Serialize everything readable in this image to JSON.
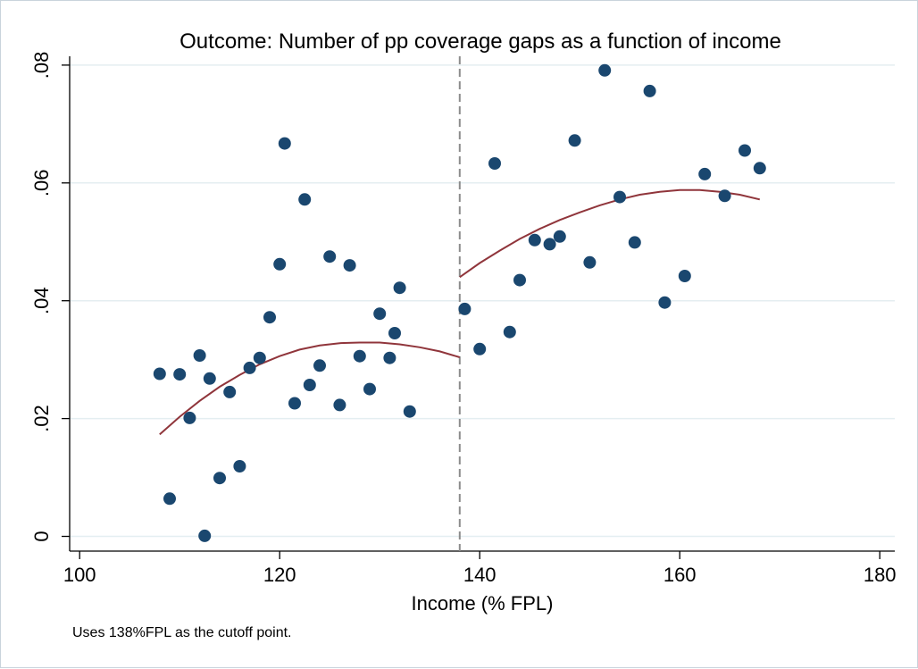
{
  "chart_data": {
    "type": "scatter",
    "title": "Outcome: Number of pp coverage gaps as a function of income",
    "xlabel": "Income (% FPL)",
    "ylabel": "",
    "note": "Uses 138%FPL as the cutoff point.",
    "xlim": [
      99,
      181.5
    ],
    "ylim": [
      -0.0025,
      0.0815
    ],
    "x_ticks": [
      100,
      120,
      140,
      160,
      180
    ],
    "x_tick_labels": [
      "100",
      "120",
      "140",
      "160",
      "180"
    ],
    "y_ticks": [
      0,
      0.02,
      0.04,
      0.06,
      0.08
    ],
    "y_tick_labels": [
      "0",
      ".02",
      ".04",
      ".06",
      ".08"
    ],
    "grid": true,
    "cutoff": 138,
    "colors": {
      "points": "#1a476f",
      "fit": "#90353b",
      "cutoff": "#8c8c8c",
      "grid": "#e4eef1"
    },
    "points": [
      [
        108.0,
        0.0276
      ],
      [
        109.0,
        0.0064
      ],
      [
        110.0,
        0.0275
      ],
      [
        111.0,
        0.0201
      ],
      [
        112.0,
        0.0307
      ],
      [
        112.5,
        0.0001
      ],
      [
        113.0,
        0.0268
      ],
      [
        114.0,
        0.0099
      ],
      [
        115.0,
        0.0245
      ],
      [
        116.0,
        0.0119
      ],
      [
        117.0,
        0.0286
      ],
      [
        118.0,
        0.0303
      ],
      [
        119.0,
        0.0372
      ],
      [
        120.0,
        0.0462
      ],
      [
        120.5,
        0.0667
      ],
      [
        121.5,
        0.0226
      ],
      [
        122.5,
        0.0572
      ],
      [
        123.0,
        0.0257
      ],
      [
        124.0,
        0.029
      ],
      [
        125.0,
        0.0475
      ],
      [
        126.0,
        0.0223
      ],
      [
        127.0,
        0.046
      ],
      [
        128.0,
        0.0306
      ],
      [
        129.0,
        0.025
      ],
      [
        130.0,
        0.0378
      ],
      [
        131.0,
        0.0303
      ],
      [
        131.5,
        0.0345
      ],
      [
        132.0,
        0.0422
      ],
      [
        133.0,
        0.0212
      ],
      [
        138.5,
        0.0386
      ],
      [
        140.0,
        0.0318
      ],
      [
        141.5,
        0.0633
      ],
      [
        143.0,
        0.0347
      ],
      [
        144.0,
        0.0435
      ],
      [
        145.5,
        0.0503
      ],
      [
        147.0,
        0.0496
      ],
      [
        148.0,
        0.0509
      ],
      [
        149.5,
        0.0672
      ],
      [
        151.0,
        0.0465
      ],
      [
        152.5,
        0.0791
      ],
      [
        154.0,
        0.0576
      ],
      [
        155.5,
        0.0499
      ],
      [
        157.0,
        0.0756
      ],
      [
        158.5,
        0.0397
      ],
      [
        160.5,
        0.0442
      ],
      [
        162.5,
        0.0615
      ],
      [
        164.5,
        0.0578
      ],
      [
        166.5,
        0.0655
      ],
      [
        168.0,
        0.0625
      ]
    ],
    "fit_left": [
      [
        108,
        0.0173
      ],
      [
        110,
        0.0203
      ],
      [
        112,
        0.023
      ],
      [
        114,
        0.0254
      ],
      [
        116,
        0.0274
      ],
      [
        118,
        0.0292
      ],
      [
        120,
        0.0306
      ],
      [
        122,
        0.0317
      ],
      [
        124,
        0.0324
      ],
      [
        126,
        0.0328
      ],
      [
        128,
        0.0329
      ],
      [
        130,
        0.0329
      ],
      [
        132,
        0.0326
      ],
      [
        134,
        0.0321
      ],
      [
        136,
        0.0314
      ],
      [
        138,
        0.0304
      ]
    ],
    "fit_right": [
      [
        138,
        0.044
      ],
      [
        140,
        0.0464
      ],
      [
        142,
        0.0485
      ],
      [
        144,
        0.0505
      ],
      [
        146,
        0.0522
      ],
      [
        148,
        0.0537
      ],
      [
        150,
        0.055
      ],
      [
        152,
        0.0562
      ],
      [
        154,
        0.0572
      ],
      [
        156,
        0.058
      ],
      [
        158,
        0.0585
      ],
      [
        160,
        0.0588
      ],
      [
        162,
        0.0588
      ],
      [
        164,
        0.0585
      ],
      [
        166,
        0.058
      ],
      [
        168,
        0.0572
      ]
    ]
  }
}
